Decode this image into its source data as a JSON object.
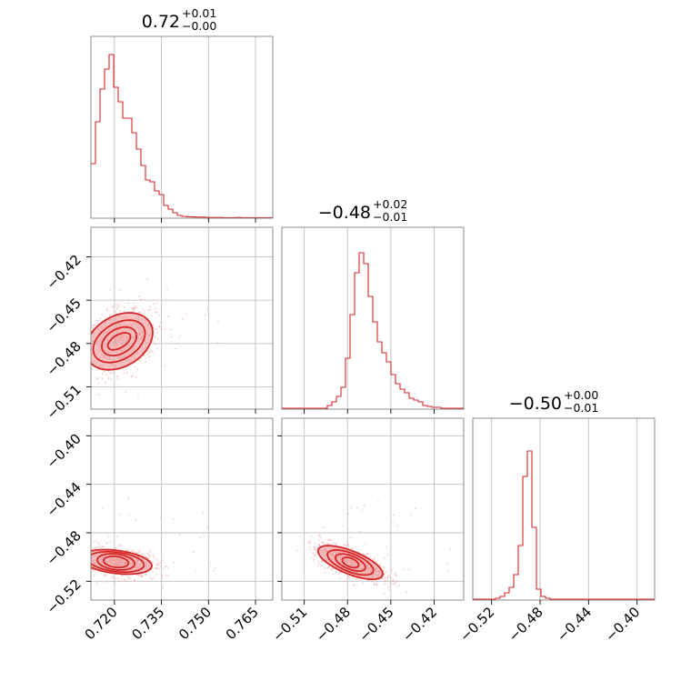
{
  "chart_data": {
    "type": "corner",
    "parameters": [
      {
        "title_main": "0.72",
        "title_sup": "+0.01",
        "title_sub": "−0.00",
        "range": [
          0.7125,
          0.7705
        ],
        "ticks": [
          0.72,
          0.735,
          0.75,
          0.765
        ],
        "tick_labels": [
          "0.720",
          "0.735",
          "0.750",
          "0.765"
        ],
        "hist": {
          "edges_start": 0.7125,
          "bin_width": 0.00145,
          "counts": [
            0.3,
            0.53,
            0.71,
            0.82,
            0.9,
            0.72,
            0.64,
            0.55,
            0.55,
            0.47,
            0.38,
            0.29,
            0.21,
            0.2,
            0.15,
            0.13,
            0.07,
            0.05,
            0.03,
            0.015,
            0.01,
            0.008,
            0.007,
            0.006,
            0.006,
            0.005,
            0.004,
            0.004,
            0.004,
            0.003,
            0.003,
            0.003,
            0.004,
            0.003,
            0.003,
            0.003,
            0.003,
            0.003,
            0.003,
            0.003
          ]
        }
      },
      {
        "title_main": "−0.48",
        "title_sup": "+0.02",
        "title_sub": "−0.01",
        "range": [
          -0.5255,
          -0.3995
        ],
        "ticks": [
          -0.51,
          -0.48,
          -0.45,
          -0.42
        ],
        "tick_labels": [
          "−0.51",
          "−0.48",
          "−0.45",
          "−0.42"
        ],
        "hist": {
          "edges_start": -0.5255,
          "bin_width": 0.00315,
          "counts": [
            0.005,
            0.005,
            0.005,
            0.005,
            0.005,
            0.005,
            0.005,
            0.005,
            0.005,
            0.005,
            0.02,
            0.04,
            0.07,
            0.12,
            0.28,
            0.52,
            0.75,
            0.86,
            0.8,
            0.62,
            0.48,
            0.37,
            0.31,
            0.26,
            0.19,
            0.14,
            0.11,
            0.09,
            0.06,
            0.05,
            0.04,
            0.02,
            0.015,
            0.01,
            0.01,
            0.005,
            0.005,
            0.005,
            0.005,
            0.005
          ]
        }
      },
      {
        "title_main": "−0.50",
        "title_sup": "+0.00",
        "title_sub": "−0.01",
        "range": [
          -0.5355,
          -0.3855
        ],
        "ticks": [
          -0.52,
          -0.48,
          -0.44,
          -0.4
        ],
        "tick_labels": [
          "−0.52",
          "−0.48",
          "−0.44",
          "−0.40"
        ],
        "hist": {
          "edges_start": -0.5355,
          "bin_width": 0.00375,
          "counts": [
            0.005,
            0.005,
            0.005,
            0.005,
            0.005,
            0.01,
            0.02,
            0.04,
            0.07,
            0.14,
            0.3,
            0.68,
            0.82,
            0.4,
            0.06,
            0.02,
            0.01,
            0.005,
            0.005,
            0.005,
            0.005,
            0.005,
            0.005,
            0.005,
            0.005,
            0.005,
            0.005,
            0.005,
            0.005,
            0.005,
            0.005,
            0.005,
            0.005,
            0.005,
            0.005,
            0.005,
            0.005,
            0.005,
            0.005,
            0.005
          ]
        }
      }
    ],
    "scatter_2d": [
      {
        "x_param": 0,
        "y_param": 1,
        "center": [
          0.7215,
          -0.4785
        ],
        "angle_deg": 31,
        "contours": [
          [
            0.004,
            0.0045
          ],
          [
            0.006,
            0.0085
          ],
          [
            0.009,
            0.0125
          ],
          [
            0.0115,
            0.0175
          ]
        ]
      },
      {
        "x_param": 0,
        "y_param": 2,
        "center": [
          0.7205,
          -0.504
        ],
        "angle_deg": -7,
        "contours": [
          [
            0.004,
            0.0045
          ],
          [
            0.006,
            0.0065
          ],
          [
            0.009,
            0.008
          ],
          [
            0.0115,
            0.0095
          ]
        ]
      },
      {
        "x_param": 1,
        "y_param": 2,
        "center": [
          -0.478,
          -0.5045
        ],
        "angle_deg": -22,
        "contours": [
          [
            0.006,
            0.0035
          ],
          [
            0.011,
            0.0055
          ],
          [
            0.017,
            0.0075
          ],
          [
            0.024,
            0.0095
          ]
        ]
      }
    ],
    "colors": {
      "line": "#d62728",
      "fill": "#f4b6b6",
      "points": "#eea0a0"
    },
    "grid": true
  }
}
